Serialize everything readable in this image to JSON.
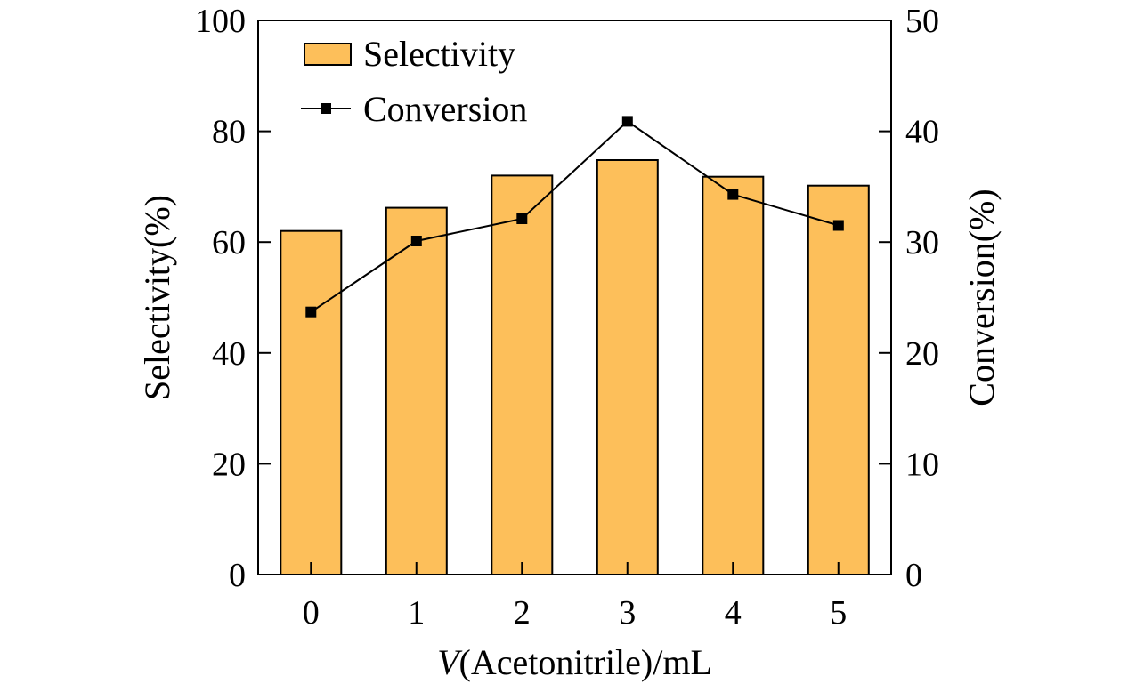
{
  "chart_data": {
    "type": "bar+line",
    "categories": [
      "0",
      "1",
      "2",
      "3",
      "4",
      "5"
    ],
    "series": [
      {
        "name": "Selectivity",
        "type": "bar",
        "axis": "left",
        "values": [
          62.0,
          66.2,
          72.0,
          74.8,
          71.8,
          70.2
        ]
      },
      {
        "name": "Conversion",
        "type": "line",
        "axis": "right",
        "marker": "square",
        "values": [
          23.7,
          30.1,
          32.1,
          40.9,
          34.3,
          31.5
        ]
      }
    ],
    "xlabel": {
      "italic": "V",
      "rest": "(Acetonitrile)/mL"
    },
    "ylabel_left": "Selectivity(%)",
    "ylabel_right": "Conversion(%)",
    "ylim_left": [
      0,
      100
    ],
    "ylim_right": [
      0,
      50
    ],
    "yticks_left": [
      "0",
      "20",
      "40",
      "60",
      "80",
      "100"
    ],
    "yticks_right": [
      "0",
      "10",
      "20",
      "30",
      "40",
      "50"
    ],
    "legend_position": "top-left",
    "grid": false,
    "colors": {
      "bar_fill": "#FDBF5A",
      "bar_stroke": "#000000",
      "line": "#000000",
      "marker": "#000000"
    }
  }
}
